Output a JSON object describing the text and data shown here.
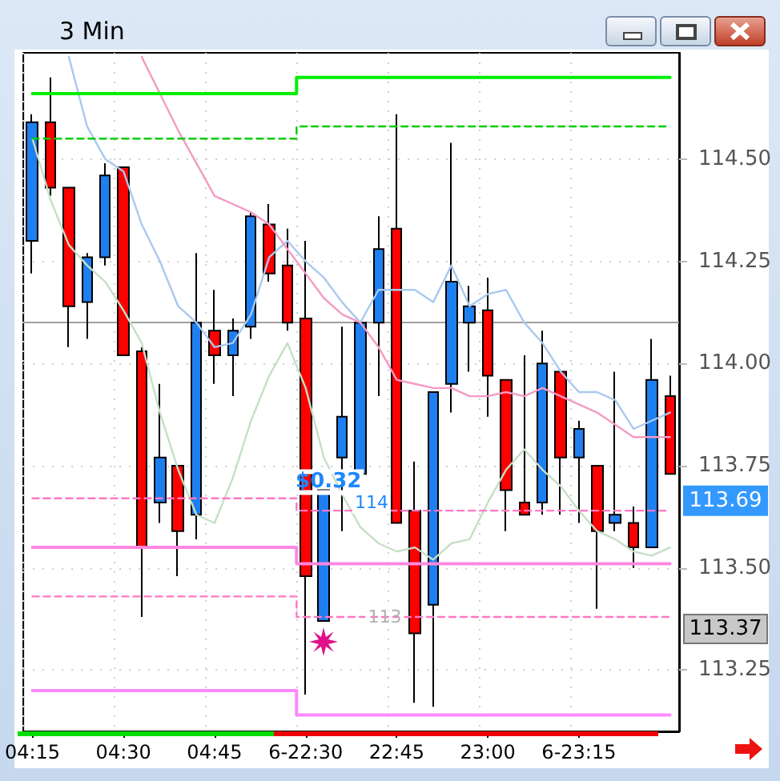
{
  "chart_data": {
    "type": "candlestick",
    "title": "3 Min",
    "categories": [
      "04:15",
      null,
      null,
      null,
      null,
      "04:30",
      null,
      null,
      null,
      null,
      "04:45",
      null,
      null,
      null,
      null,
      "6-22:30",
      null,
      null,
      null,
      null,
      "22:45",
      null,
      null,
      null,
      null,
      "23:00",
      null,
      null,
      null,
      null,
      "6-23:15",
      null,
      null,
      null,
      null,
      null
    ],
    "ohlc": [
      [
        114.3,
        114.61,
        114.22,
        114.59
      ],
      [
        114.59,
        114.7,
        114.41,
        114.43
      ],
      [
        114.43,
        114.43,
        114.04,
        114.14
      ],
      [
        114.15,
        114.27,
        114.06,
        114.26
      ],
      [
        114.26,
        114.49,
        114.24,
        114.46
      ],
      [
        114.48,
        114.48,
        114.02,
        114.02
      ],
      [
        114.03,
        114.04,
        113.38,
        113.55
      ],
      [
        113.66,
        113.95,
        113.61,
        113.77
      ],
      [
        113.75,
        113.75,
        113.48,
        113.59
      ],
      [
        113.63,
        114.27,
        113.57,
        114.1
      ],
      [
        114.08,
        114.18,
        113.95,
        114.02
      ],
      [
        114.02,
        114.11,
        113.92,
        114.08
      ],
      [
        114.09,
        114.37,
        114.06,
        114.36
      ],
      [
        114.34,
        114.39,
        114.2,
        114.22
      ],
      [
        114.24,
        114.33,
        114.08,
        114.1
      ],
      [
        114.11,
        114.3,
        113.19,
        113.48
      ],
      [
        113.37,
        113.69,
        113.37,
        113.69
      ],
      [
        113.77,
        114.09,
        113.59,
        113.87
      ],
      [
        113.73,
        114.1,
        113.73,
        114.1
      ],
      [
        114.1,
        114.36,
        113.92,
        114.28
      ],
      [
        114.33,
        114.61,
        113.61,
        113.61
      ],
      [
        113.64,
        113.76,
        113.17,
        113.34
      ],
      [
        113.41,
        113.93,
        113.16,
        113.93
      ],
      [
        113.95,
        114.54,
        113.88,
        114.2
      ],
      [
        114.1,
        114.19,
        113.98,
        114.14
      ],
      [
        114.13,
        114.21,
        113.87,
        113.97
      ],
      [
        113.96,
        113.96,
        113.59,
        113.69
      ],
      [
        113.66,
        114.02,
        113.63,
        113.63
      ],
      [
        113.66,
        114.08,
        113.63,
        114.0
      ],
      [
        113.98,
        113.98,
        113.63,
        113.77
      ],
      [
        113.77,
        113.86,
        113.61,
        113.84
      ],
      [
        113.75,
        113.75,
        113.4,
        113.59
      ],
      [
        113.61,
        113.98,
        113.59,
        113.63
      ],
      [
        113.61,
        113.65,
        113.5,
        113.55
      ],
      [
        113.55,
        114.06,
        113.55,
        113.96
      ],
      [
        113.92,
        113.97,
        113.73,
        113.73
      ]
    ],
    "colors": [
      "#1e7ff0",
      "#ff0000",
      "#ff0000",
      "#1e7ff0",
      "#1e7ff0",
      "#ff0000",
      "#ff0000",
      "#1e7ff0",
      "#ff0000",
      "#1e7ff0",
      "#ff0000",
      "#1e7ff0",
      "#1e7ff0",
      "#ff0000",
      "#ff0000",
      "#ff0000",
      "#1e7ff0",
      "#1e7ff0",
      "#1e7ff0",
      "#1e7ff0",
      "#ff0000",
      "#ff0000",
      "#1e7ff0",
      "#1e7ff0",
      "#1e7ff0",
      "#ff0000",
      "#ff0000",
      "#ff0000",
      "#1e7ff0",
      "#ff0000",
      "#1e7ff0",
      "#ff0000",
      "#1e7ff0",
      "#ff0000",
      "#1e7ff0",
      "#ff0000"
    ],
    "series": [
      {
        "type": "line",
        "color": "#a9c9ee",
        "values": [
          null,
          null,
          114.75,
          114.58,
          114.5,
          114.47,
          114.34,
          114.25,
          114.14,
          114.1,
          114.04,
          114.05,
          114.12,
          114.26,
          114.3,
          114.25,
          114.21,
          114.15,
          114.1,
          114.18,
          114.18,
          114.18,
          114.15,
          114.24,
          114.14,
          114.17,
          114.18,
          114.1,
          114.05,
          113.98,
          113.93,
          113.93,
          113.91,
          113.84,
          113.86,
          113.88
        ]
      },
      {
        "type": "line",
        "color": "#f59ac4",
        "values": [
          null,
          null,
          null,
          null,
          null,
          null,
          114.75,
          114.66,
          114.57,
          114.49,
          114.41,
          114.39,
          114.37,
          114.34,
          114.28,
          114.22,
          114.16,
          114.12,
          114.1,
          114.04,
          113.96,
          113.95,
          113.94,
          113.94,
          113.92,
          113.92,
          113.93,
          113.92,
          113.94,
          113.92,
          113.9,
          113.88,
          113.85,
          113.82,
          113.82,
          113.82
        ]
      },
      {
        "type": "line",
        "color": "#c6dfc6",
        "values": [
          114.55,
          114.4,
          114.29,
          114.24,
          114.2,
          114.13,
          114.05,
          113.88,
          113.74,
          113.63,
          113.61,
          113.72,
          113.86,
          113.97,
          114.05,
          113.94,
          113.77,
          113.68,
          113.6,
          113.56,
          113.54,
          113.55,
          113.52,
          113.56,
          113.57,
          113.66,
          113.74,
          113.79,
          113.74,
          113.7,
          113.64,
          113.59,
          113.57,
          113.54,
          113.53,
          113.55
        ]
      },
      {
        "type": "step",
        "color": "#00ee00",
        "values": [
          114.66,
          114.66,
          114.66,
          114.66,
          114.66,
          114.66,
          114.66,
          114.66,
          114.66,
          114.66,
          114.66,
          114.66,
          114.66,
          114.66,
          114.66,
          114.7,
          114.7,
          114.7,
          114.7,
          114.7,
          114.7,
          114.7,
          114.7,
          114.7,
          114.7,
          114.7,
          114.7,
          114.7,
          114.7,
          114.7,
          114.7,
          114.7,
          114.7,
          114.7,
          114.7,
          114.7
        ]
      },
      {
        "type": "step",
        "color": "#00cc00",
        "line_style": "dashed",
        "values": [
          114.55,
          114.55,
          114.55,
          114.55,
          114.55,
          114.55,
          114.55,
          114.55,
          114.55,
          114.55,
          114.55,
          114.55,
          114.55,
          114.55,
          114.55,
          114.58,
          114.58,
          114.58,
          114.58,
          114.58,
          114.58,
          114.58,
          114.58,
          114.58,
          114.58,
          114.58,
          114.58,
          114.58,
          114.58,
          114.58,
          114.58,
          114.58,
          114.58,
          114.58,
          114.58,
          114.58
        ]
      },
      {
        "type": "step",
        "color": "#ff88e0",
        "values": [
          113.55,
          113.55,
          113.55,
          113.55,
          113.55,
          113.55,
          113.55,
          113.55,
          113.55,
          113.55,
          113.55,
          113.55,
          113.55,
          113.55,
          113.55,
          113.51,
          113.51,
          113.51,
          113.51,
          113.51,
          113.51,
          113.51,
          113.51,
          113.51,
          113.51,
          113.51,
          113.51,
          113.51,
          113.51,
          113.51,
          113.51,
          113.51,
          113.51,
          113.51,
          113.51,
          113.51
        ]
      },
      {
        "type": "step",
        "color": "#ff77c4",
        "line_style": "dashed",
        "values": [
          113.67,
          113.67,
          113.67,
          113.67,
          113.67,
          113.67,
          113.67,
          113.67,
          113.67,
          113.67,
          113.67,
          113.67,
          113.67,
          113.67,
          113.67,
          113.64,
          113.64,
          113.64,
          113.64,
          113.64,
          113.64,
          113.64,
          113.64,
          113.64,
          113.64,
          113.64,
          113.64,
          113.64,
          113.64,
          113.64,
          113.64,
          113.64,
          113.64,
          113.64,
          113.64,
          113.64
        ]
      },
      {
        "type": "step",
        "color": "#ff77c4",
        "line_style": "dashed",
        "values": [
          113.43,
          113.43,
          113.43,
          113.43,
          113.43,
          113.43,
          113.43,
          113.43,
          113.43,
          113.43,
          113.43,
          113.43,
          113.43,
          113.43,
          113.43,
          113.38,
          113.38,
          113.38,
          113.38,
          113.38,
          113.38,
          113.38,
          113.38,
          113.38,
          113.38,
          113.38,
          113.38,
          113.38,
          113.38,
          113.38,
          113.38,
          113.38,
          113.38,
          113.38,
          113.38,
          113.38
        ]
      },
      {
        "type": "step",
        "color": "#ff88ff",
        "values": [
          113.2,
          113.2,
          113.2,
          113.2,
          113.2,
          113.2,
          113.2,
          113.2,
          113.2,
          113.2,
          113.2,
          113.2,
          113.2,
          113.2,
          113.2,
          113.14,
          113.14,
          113.14,
          113.14,
          113.14,
          113.14,
          113.14,
          113.14,
          113.14,
          113.14,
          113.14,
          113.14,
          113.14,
          113.14,
          113.14,
          113.14,
          113.14,
          113.14,
          113.14,
          113.14,
          113.14
        ]
      }
    ],
    "ylim": [
      113.1,
      114.76
    ],
    "yticks": [
      {
        "value": 113.25,
        "label": "113.25"
      },
      {
        "value": 113.5,
        "label": "113.50"
      },
      {
        "value": 113.75,
        "label": "113.75"
      },
      {
        "value": 114,
        "label": "114.00"
      },
      {
        "value": 114.25,
        "label": "114.25"
      },
      {
        "value": 114.5,
        "label": "114.50"
      }
    ],
    "ref_lines": [
      {
        "axis": "y",
        "value": 114.1,
        "color": "#a0a0a0"
      }
    ],
    "annotations": [
      {
        "text": "$0.32",
        "y": 113.71
      },
      {
        "text": "114",
        "y": 113.66
      },
      {
        "text": "113",
        "y": 113.38
      },
      "113.69",
      "113.37"
    ],
    "grid": true,
    "marker": "none"
  }
}
